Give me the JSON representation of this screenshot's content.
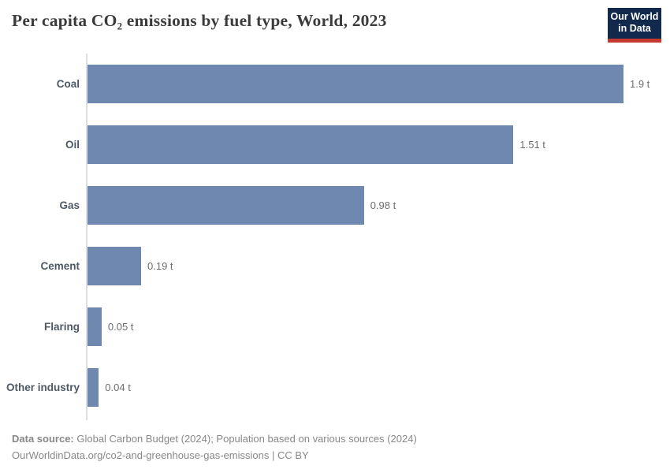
{
  "header": {
    "title": "Per capita CO₂ emissions by fuel type, World, 2023",
    "logo": {
      "line1": "Our World",
      "line2": "in Data",
      "bg_color": "#12294E",
      "accent_color": "#C5392F"
    }
  },
  "chart_data": {
    "type": "bar",
    "orientation": "horizontal",
    "title": "Per capita CO₂ emissions by fuel type, World, 2023",
    "categories": [
      "Coal",
      "Oil",
      "Gas",
      "Cement",
      "Flaring",
      "Other industry"
    ],
    "values": [
      1.9,
      1.51,
      0.98,
      0.19,
      0.05,
      0.04
    ],
    "value_labels": [
      "1.9 t",
      "1.51 t",
      "0.98 t",
      "0.19 t",
      "0.05 t",
      "0.04 t"
    ],
    "unit": "t",
    "xlabel": "",
    "ylabel": "",
    "xlim": [
      0,
      1.9
    ],
    "grid": false,
    "legend": "none",
    "bar_color": "#6E88AF",
    "axis_line_color": "#DCDEE0"
  },
  "footer": {
    "source_label": "Data source:",
    "source_text": " Global Carbon Budget (2024); Population based on various sources (2024)",
    "link_line": "OurWorldinData.org/co2-and-greenhouse-gas-emissions | CC BY"
  }
}
